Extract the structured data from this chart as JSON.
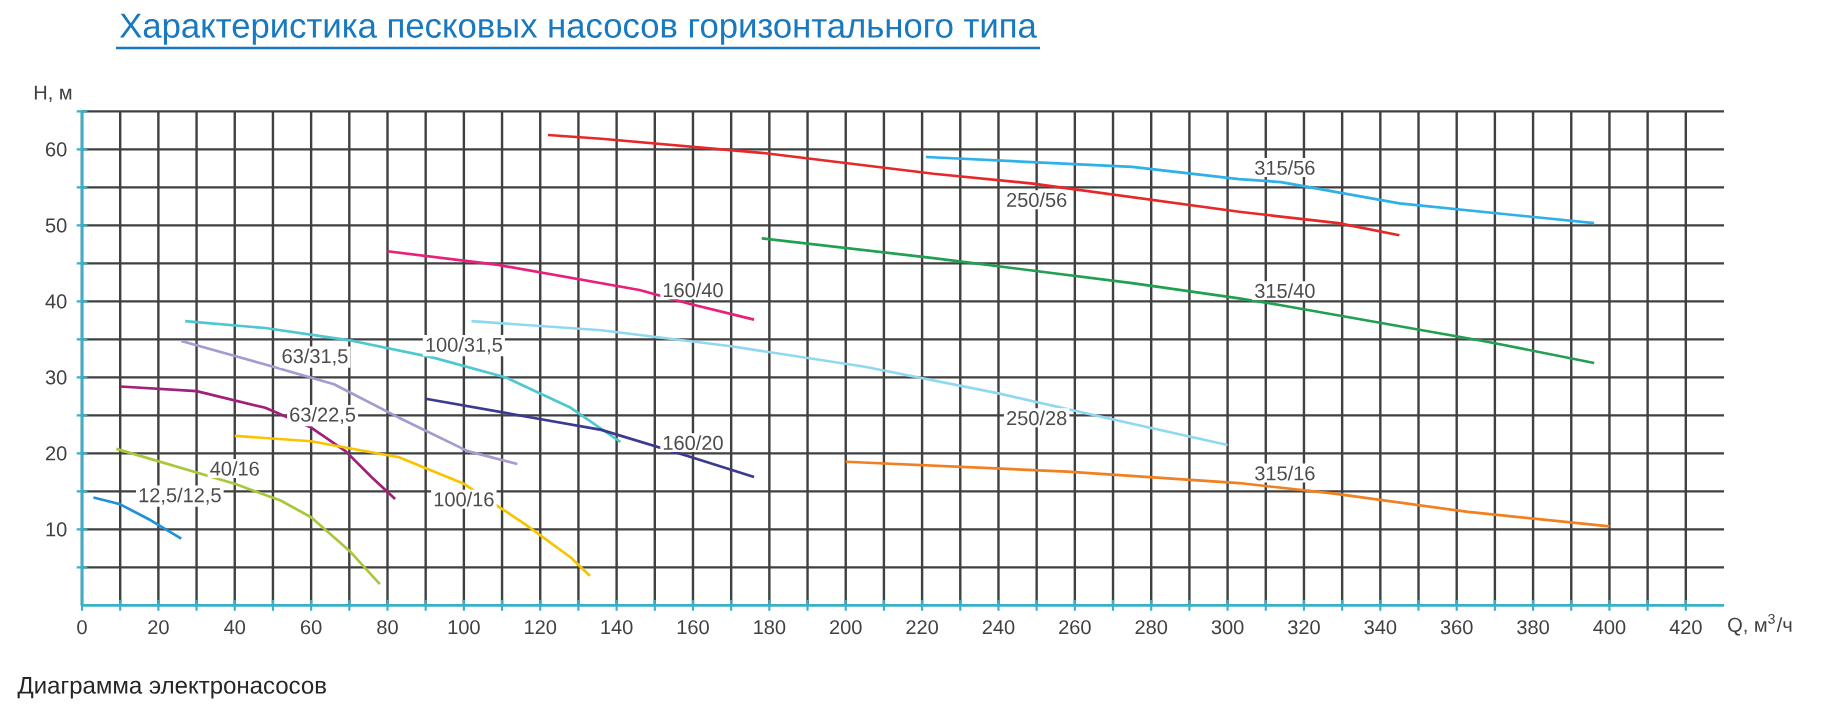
{
  "chart_data": {
    "type": "line",
    "title": "Характеристика песковых насосов горизонтального типа",
    "xlabel": "Q, м$^{3}$/ч",
    "ylabel": "H, м",
    "xlim": [
      0,
      430
    ],
    "ylim": [
      0,
      65
    ],
    "xticks": [
      0,
      {
        "value": 10,
        "label": null
      },
      20,
      {
        "value": 30,
        "label": null
      },
      40,
      {
        "value": 50,
        "label": null
      },
      60,
      {
        "value": 70,
        "label": null
      },
      80,
      {
        "value": 90,
        "label": null
      },
      100,
      {
        "value": 110,
        "label": null
      },
      120,
      {
        "value": 130,
        "label": null
      },
      140,
      {
        "value": 150,
        "label": null
      },
      160,
      {
        "value": 170,
        "label": null
      },
      180,
      {
        "value": 190,
        "label": null
      },
      200,
      {
        "value": 210,
        "label": null
      },
      220,
      {
        "value": 230,
        "label": null
      },
      240,
      {
        "value": 250,
        "label": null
      },
      260,
      {
        "value": 270,
        "label": null
      },
      280,
      {
        "value": 290,
        "label": null
      },
      300,
      {
        "value": 310,
        "label": null
      },
      320,
      {
        "value": 330,
        "label": null
      },
      340,
      {
        "value": 350,
        "label": null
      },
      360,
      {
        "value": 370,
        "label": null
      },
      380,
      {
        "value": 390,
        "label": null
      },
      400,
      {
        "value": 410,
        "label": null
      },
      420
    ],
    "yticks": [
      {
        "value": 5,
        "label": null
      },
      10,
      {
        "value": 15,
        "label": null
      },
      20,
      {
        "value": 25,
        "label": null
      },
      30,
      {
        "value": 35,
        "label": null
      },
      40,
      {
        "value": 45,
        "label": null
      },
      50,
      {
        "value": 55,
        "label": null
      },
      60,
      {
        "value": 65,
        "label": null
      }
    ],
    "grid": true,
    "marker": "none",
    "line_style": "solid",
    "series": [
      {
        "color": "#1e90d8",
        "x": [
          3,
          10,
          18,
          26
        ],
        "values": [
          14.2,
          13.3,
          11.2,
          8.8
        ]
      },
      {
        "color": "#a8c83c",
        "x": [
          9,
          40,
          52,
          60,
          70,
          78
        ],
        "values": [
          20.6,
          16.0,
          13.8,
          11.6,
          7.2,
          2.8
        ]
      },
      {
        "color": "#a0207a",
        "x": [
          10,
          30,
          48,
          60,
          69,
          76,
          82
        ],
        "values": [
          28.8,
          28.2,
          26.0,
          23.4,
          20.3,
          16.8,
          14.0
        ]
      },
      {
        "color": "#a89ad0",
        "x": [
          26,
          48,
          66,
          83,
          101,
          114
        ],
        "values": [
          34.8,
          31.7,
          29.1,
          24.7,
          20.3,
          18.6
        ]
      },
      {
        "color": "#4ec8d0",
        "x": [
          27,
          48,
          71,
          92,
          111,
          128,
          141
        ],
        "values": [
          37.4,
          36.5,
          34.8,
          32.6,
          30.0,
          26.0,
          21.5
        ]
      },
      {
        "color": "#f8c400",
        "x": [
          40,
          60,
          83,
          100,
          116,
          128,
          133
        ],
        "values": [
          22.3,
          21.6,
          19.5,
          16.0,
          10.7,
          6.3,
          3.9
        ]
      },
      {
        "color": "#3a3a90",
        "x": [
          90,
          118,
          136,
          159,
          176
        ],
        "values": [
          27.2,
          24.7,
          23.1,
          19.6,
          16.9
        ]
      },
      {
        "color": "#e8207a",
        "x": [
          80,
          109,
          146,
          159,
          176
        ],
        "values": [
          46.6,
          44.8,
          41.5,
          39.7,
          37.6
        ]
      },
      {
        "color": "#90d8f0",
        "x": [
          102,
          136,
          170,
          205,
          240,
          275,
          300
        ],
        "values": [
          37.4,
          36.2,
          34.1,
          31.4,
          27.9,
          23.9,
          21.1
        ]
      },
      {
        "color": "#e82828",
        "x": [
          122,
          136,
          179,
          223,
          249,
          303,
          329,
          345
        ],
        "values": [
          61.9,
          61.4,
          59.5,
          56.8,
          55.5,
          51.8,
          50.3,
          48.7
        ]
      },
      {
        "color": "#30b0e8",
        "x": [
          221,
          275,
          303,
          314,
          345,
          396
        ],
        "values": [
          59.0,
          57.7,
          56.1,
          55.7,
          52.9,
          50.3
        ]
      },
      {
        "color": "#20a050",
        "x": [
          178,
          223,
          275,
          303,
          314,
          368,
          396
        ],
        "values": [
          48.3,
          45.7,
          42.4,
          40.4,
          39.5,
          34.7,
          31.9
        ]
      },
      {
        "color": "#f08020",
        "x": [
          200,
          258,
          303,
          328,
          363,
          400
        ],
        "values": [
          18.9,
          17.6,
          16.1,
          14.7,
          12.3,
          10.4
        ]
      }
    ],
    "annotations": [
      "Диаграмма электронасосов",
      {
        "text": "12,5/12,5",
        "x": 14,
        "y": 12.2
      },
      {
        "text": "40/16",
        "x": 40,
        "y": 16.0
      },
      {
        "text": "63/22,5",
        "x": 63,
        "y": 22.8
      },
      {
        "text": "63/31,5",
        "x": 61,
        "y": 30.5
      },
      {
        "text": "100/31,5",
        "x": 100,
        "y": 32.0
      },
      {
        "text": "100/16",
        "x": 100,
        "y": 16.0
      },
      {
        "text": "160/20",
        "x": 160,
        "y": 19.4
      },
      {
        "text": "160/40",
        "x": 160,
        "y": 39.5
      },
      {
        "text": "250/28",
        "x": 250,
        "y": 26.7
      },
      {
        "text": "250/56",
        "x": 250,
        "y": 55.4
      },
      {
        "text": "315/56",
        "x": 315,
        "y": 55.6
      },
      {
        "text": "315/40",
        "x": 315,
        "y": 39.4
      },
      {
        "text": "315/16",
        "x": 315,
        "y": 15.4
      }
    ]
  }
}
